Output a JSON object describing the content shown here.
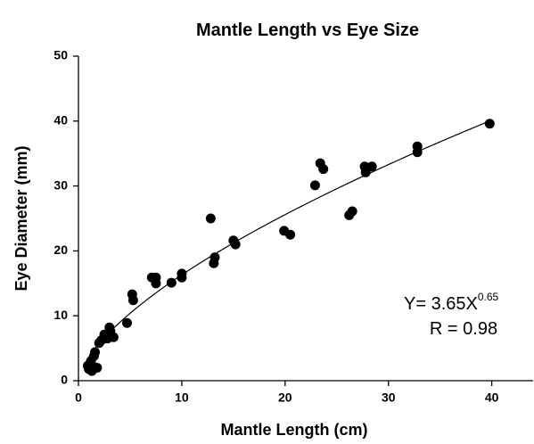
{
  "chart_data": {
    "type": "scatter",
    "title": "Mantle Length vs Eye Size",
    "x_label": "Mantle Length (cm)",
    "y_label": "Eye Diameter (mm)",
    "xlim": [
      0,
      44
    ],
    "ylim": [
      0,
      50
    ],
    "xticks": [
      0,
      10,
      20,
      30,
      40
    ],
    "yticks": [
      0,
      10,
      20,
      30,
      40,
      50
    ],
    "color": "#000000",
    "x": [
      39.8,
      32.8,
      32.8,
      27.7,
      27.8,
      28.4,
      23.4,
      23.7,
      22.9,
      26.5,
      26.2,
      19.9,
      20.5,
      15.0,
      15.2,
      12.8,
      13.2,
      13.1,
      10.0,
      10.0,
      9.0,
      7.1,
      7.5,
      7.5,
      5.2,
      5.3,
      4.7,
      3.0,
      3.1,
      3.4,
      2.5,
      2.8,
      2.2,
      2.0,
      1.6,
      1.5,
      1.2,
      1.5,
      1.8,
      0.9,
      1.0,
      1.3
    ],
    "values": [
      39.6,
      36.1,
      35.2,
      33.0,
      32.1,
      33.0,
      33.5,
      32.6,
      30.1,
      26.1,
      25.5,
      23.1,
      22.5,
      21.6,
      21.0,
      25.0,
      19.0,
      18.1,
      16.5,
      15.9,
      15.1,
      15.9,
      15.9,
      15.0,
      13.3,
      12.4,
      8.9,
      8.2,
      7.6,
      6.7,
      7.1,
      6.5,
      6.2,
      5.8,
      4.4,
      3.8,
      3.0,
      2.1,
      2.0,
      2.3,
      1.8,
      1.5
    ],
    "fit": {
      "prefix": "Y= ",
      "coef": 3.65,
      "base": "X",
      "exponent": 0.65
    },
    "r_label": "R = 0.98"
  }
}
